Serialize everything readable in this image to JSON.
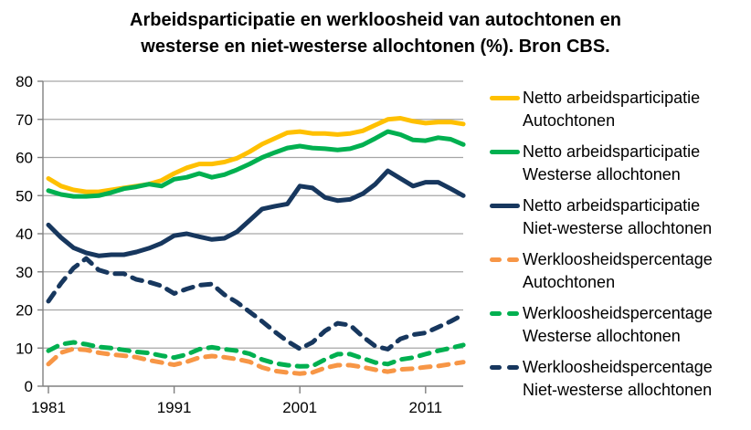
{
  "title": {
    "line1": "Arbeidsparticipatie en werkloosheid van autochtonen en",
    "line2": "westerse en niet-westerse allochtonen (%). Bron CBS."
  },
  "colors": {
    "gold": "#FFC000",
    "green": "#00B050",
    "navy": "#17375E",
    "orange": "#F79646",
    "gridline": "#A6A6A6",
    "axis": "#808080",
    "text": "#000000"
  },
  "legend": {
    "items": [
      {
        "line1": "Netto arbeidsparticipatie",
        "line2": "Autochtonen",
        "color": "#FFC000",
        "dashed": false
      },
      {
        "line1": "Netto arbeidsparticipatie",
        "line2": "Westerse allochtonen",
        "color": "#00B050",
        "dashed": false
      },
      {
        "line1": "Netto arbeidsparticipatie",
        "line2": "Niet-westerse allochtonen",
        "color": "#17375E",
        "dashed": false
      },
      {
        "line1": "Werkloosheidspercentage",
        "line2": "Autochtonen",
        "color": "#F79646",
        "dashed": true
      },
      {
        "line1": "Werkloosheidspercentage",
        "line2": "Westerse allochtonen",
        "color": "#00B050",
        "dashed": true
      },
      {
        "line1": "Werkloosheidspercentage",
        "line2": "Niet-westerse allochtonen",
        "color": "#17375E",
        "dashed": true
      }
    ]
  },
  "chart_data": {
    "type": "line",
    "title": "Arbeidsparticipatie en werkloosheid van autochtonen en westerse en niet-westerse allochtonen (%). Bron CBS.",
    "xlabel": "",
    "ylabel": "",
    "x_range": [
      1981,
      2014
    ],
    "xticks": [
      1981,
      1991,
      2001,
      2011
    ],
    "ylim": [
      0,
      80
    ],
    "ytick_step": 10,
    "grid": "horizontal",
    "legend_position": "right",
    "x": [
      1981,
      1982,
      1983,
      1984,
      1985,
      1986,
      1987,
      1988,
      1989,
      1990,
      1991,
      1992,
      1993,
      1994,
      1995,
      1996,
      1997,
      1998,
      1999,
      2000,
      2001,
      2002,
      2003,
      2004,
      2005,
      2006,
      2007,
      2008,
      2009,
      2010,
      2011,
      2012,
      2013,
      2014
    ],
    "series": [
      {
        "name": "Netto arbeidsparticipatie Autochtonen",
        "color": "#FFC000",
        "dashed": false,
        "values": [
          54.5,
          52.5,
          51.5,
          51,
          51,
          51.5,
          52,
          52.5,
          53,
          54,
          55.8,
          57.3,
          58.3,
          58.3,
          58.8,
          59.8,
          61.5,
          63.5,
          65,
          66.5,
          66.8,
          66.3,
          66.3,
          66,
          66.3,
          67,
          68.5,
          70,
          70.3,
          69.5,
          69,
          69.3,
          69.3,
          68.8
        ]
      },
      {
        "name": "Netto arbeidsparticipatie Westerse allochtonen",
        "color": "#00B050",
        "dashed": false,
        "values": [
          51.3,
          50.3,
          49.8,
          49.8,
          50,
          50.8,
          51.8,
          52.3,
          53,
          52.5,
          54.3,
          54.8,
          55.8,
          54.8,
          55.5,
          56.8,
          58.3,
          60,
          61.3,
          62.5,
          63,
          62.5,
          62.3,
          62,
          62.3,
          63.3,
          65,
          66.8,
          66,
          64.6,
          64.4,
          65.2,
          64.8,
          63.4
        ]
      },
      {
        "name": "Netto arbeidsparticipatie Niet-westerse allochtonen",
        "color": "#17375E",
        "dashed": false,
        "values": [
          42.3,
          39,
          36.3,
          35,
          34.2,
          34.5,
          34.5,
          35.2,
          36.2,
          37.5,
          39.5,
          40,
          39.2,
          38.5,
          38.8,
          40.5,
          43.5,
          46.5,
          47.2,
          47.8,
          52.5,
          52,
          49.5,
          48.7,
          49,
          50.5,
          53,
          56.5,
          54.5,
          52.5,
          53.5,
          53.5,
          51.8,
          50
        ]
      },
      {
        "name": "Werkloosheidspercentage Autochtonen",
        "color": "#F79646",
        "dashed": true,
        "values": [
          5.8,
          8.8,
          9.8,
          9.5,
          8.8,
          8.3,
          8,
          7.6,
          6.8,
          6.2,
          5.6,
          6.4,
          7.5,
          7.9,
          7.6,
          7.1,
          6.4,
          4.9,
          4,
          3.6,
          3.3,
          3.6,
          4.8,
          5.5,
          5.5,
          5,
          4.3,
          3.8,
          4.4,
          4.6,
          5,
          5.3,
          5.8,
          6.3
        ]
      },
      {
        "name": "Werkloosheidspercentage Westerse allochtonen",
        "color": "#00B050",
        "dashed": true,
        "values": [
          9.3,
          11,
          11.5,
          11,
          10.3,
          10,
          9.5,
          9,
          8.7,
          8,
          7.5,
          8.3,
          9.7,
          10.2,
          9.7,
          9.3,
          8.5,
          7,
          6,
          5.5,
          5.2,
          5.3,
          7,
          8.4,
          8.4,
          7.3,
          6.2,
          5.8,
          7,
          7.5,
          8.4,
          9.3,
          10,
          10.8
        ]
      },
      {
        "name": "Werkloosheidspercentage Niet-westerse allochtonen",
        "color": "#17375E",
        "dashed": true,
        "values": [
          22.3,
          27,
          31,
          33.5,
          30.5,
          29.5,
          29.5,
          28,
          27.3,
          26.3,
          24.3,
          25.5,
          26.5,
          26.8,
          24,
          22,
          19.5,
          17,
          14.3,
          11.8,
          9.8,
          11.5,
          14.5,
          16.5,
          16,
          13,
          10.5,
          9.7,
          12.4,
          13.5,
          14,
          15.5,
          17,
          18.8
        ]
      }
    ]
  }
}
